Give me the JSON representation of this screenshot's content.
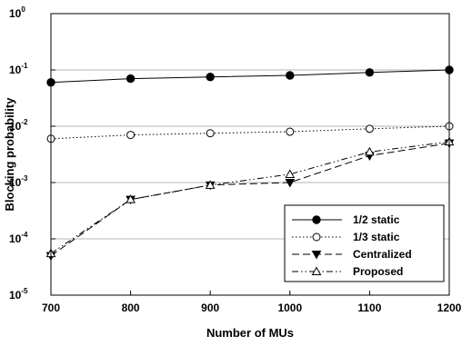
{
  "chart_data": {
    "type": "line",
    "title": "",
    "xlabel": "Number of MUs",
    "ylabel": "Blocking probability",
    "x": [
      700,
      800,
      900,
      1000,
      1100,
      1200
    ],
    "xlim": [
      700,
      1200
    ],
    "xticks": [
      "700",
      "800",
      "900",
      "1000",
      "1100",
      "1200"
    ],
    "yscale": "log",
    "ylim": [
      1e-05,
      1
    ],
    "yticks": [
      {
        "base": "10",
        "exp": "0"
      },
      {
        "base": "10",
        "exp": "-1"
      },
      {
        "base": "10",
        "exp": "-2"
      },
      {
        "base": "10",
        "exp": "-3"
      },
      {
        "base": "10",
        "exp": "-4"
      },
      {
        "base": "10",
        "exp": "-5"
      }
    ],
    "grid": "horizontal major lines",
    "legend_position": "bottom-right",
    "series": [
      {
        "name": "1/2 static",
        "values": [
          0.06,
          0.07,
          0.075,
          0.08,
          0.09,
          0.1
        ],
        "marker": "filled-circle",
        "line": "solid"
      },
      {
        "name": "1/3 static",
        "values": [
          0.006,
          0.007,
          0.0075,
          0.008,
          0.009,
          0.01
        ],
        "marker": "open-circle",
        "line": "dotted"
      },
      {
        "name": "Centralized",
        "values": [
          5e-05,
          0.0005,
          0.0009,
          0.001,
          0.003,
          0.005
        ],
        "marker": "filled-triangle-down",
        "line": "dashed"
      },
      {
        "name": "Proposed",
        "values": [
          5.5e-05,
          0.0005,
          0.0009,
          0.0014,
          0.0035,
          0.0053
        ],
        "marker": "open-triangle-up",
        "line": "dash-dot-dot"
      }
    ]
  }
}
